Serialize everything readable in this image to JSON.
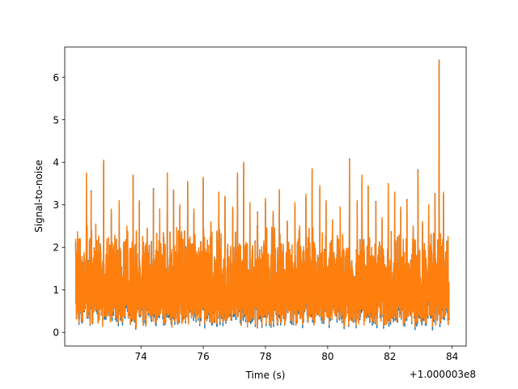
{
  "chart_data": {
    "type": "line",
    "title": "",
    "xlabel": "Time (s)",
    "ylabel": "Signal-to-noise",
    "x_offset_label": "+1.000003e8",
    "xlim": [
      71.55,
      84.45
    ],
    "ylim": [
      -0.32,
      6.71
    ],
    "xticks": [
      74,
      76,
      78,
      80,
      82,
      84
    ],
    "xtick_labels": [
      "74",
      "76",
      "78",
      "80",
      "82",
      "84"
    ],
    "yticks": [
      0,
      1,
      2,
      3,
      4,
      5,
      6
    ],
    "ytick_labels": [
      "0",
      "1",
      "2",
      "3",
      "4",
      "5",
      "6"
    ],
    "grid": false,
    "series_colors": [
      "#1f77b4",
      "#ff7f0e"
    ],
    "x_range": [
      71.9,
      83.9
    ],
    "noise_band": [
      0.1,
      2.4
    ],
    "peaks": [
      {
        "x": 72.05,
        "y": 2.2
      },
      {
        "x": 72.25,
        "y": 3.75
      },
      {
        "x": 72.4,
        "y": 3.3
      },
      {
        "x": 72.55,
        "y": 2.55
      },
      {
        "x": 72.8,
        "y": 4.05
      },
      {
        "x": 73.05,
        "y": 2.9
      },
      {
        "x": 73.3,
        "y": 3.1
      },
      {
        "x": 73.55,
        "y": 2.5
      },
      {
        "x": 73.75,
        "y": 3.7
      },
      {
        "x": 73.95,
        "y": 3.1
      },
      {
        "x": 74.2,
        "y": 2.45
      },
      {
        "x": 74.4,
        "y": 3.35
      },
      {
        "x": 74.6,
        "y": 2.9
      },
      {
        "x": 74.85,
        "y": 3.75
      },
      {
        "x": 75.05,
        "y": 3.35
      },
      {
        "x": 75.25,
        "y": 3.0
      },
      {
        "x": 75.5,
        "y": 3.55
      },
      {
        "x": 75.7,
        "y": 2.9
      },
      {
        "x": 76.0,
        "y": 3.65
      },
      {
        "x": 76.25,
        "y": 2.6
      },
      {
        "x": 76.5,
        "y": 3.3
      },
      {
        "x": 76.7,
        "y": 3.2
      },
      {
        "x": 76.95,
        "y": 2.95
      },
      {
        "x": 77.1,
        "y": 3.75
      },
      {
        "x": 77.3,
        "y": 4.0
      },
      {
        "x": 77.5,
        "y": 3.05
      },
      {
        "x": 77.75,
        "y": 2.8
      },
      {
        "x": 78.0,
        "y": 3.15
      },
      {
        "x": 78.25,
        "y": 2.85
      },
      {
        "x": 78.45,
        "y": 3.35
      },
      {
        "x": 78.7,
        "y": 2.6
      },
      {
        "x": 78.95,
        "y": 3.05
      },
      {
        "x": 79.1,
        "y": 2.5
      },
      {
        "x": 79.3,
        "y": 3.25
      },
      {
        "x": 79.5,
        "y": 3.85
      },
      {
        "x": 79.75,
        "y": 3.45
      },
      {
        "x": 79.95,
        "y": 3.1
      },
      {
        "x": 80.15,
        "y": 2.65
      },
      {
        "x": 80.4,
        "y": 2.95
      },
      {
        "x": 80.7,
        "y": 4.05
      },
      {
        "x": 80.95,
        "y": 3.1
      },
      {
        "x": 81.1,
        "y": 3.7
      },
      {
        "x": 81.3,
        "y": 3.45
      },
      {
        "x": 81.55,
        "y": 3.05
      },
      {
        "x": 81.75,
        "y": 2.7
      },
      {
        "x": 81.95,
        "y": 3.5
      },
      {
        "x": 82.15,
        "y": 3.3
      },
      {
        "x": 82.35,
        "y": 2.95
      },
      {
        "x": 82.55,
        "y": 3.1
      },
      {
        "x": 82.75,
        "y": 2.5
      },
      {
        "x": 82.9,
        "y": 3.8
      },
      {
        "x": 83.05,
        "y": 2.6
      },
      {
        "x": 83.25,
        "y": 3.0
      },
      {
        "x": 83.45,
        "y": 3.25
      },
      {
        "x": 83.58,
        "y": 6.4
      },
      {
        "x": 83.72,
        "y": 3.3
      },
      {
        "x": 83.85,
        "y": 2.0
      }
    ]
  }
}
